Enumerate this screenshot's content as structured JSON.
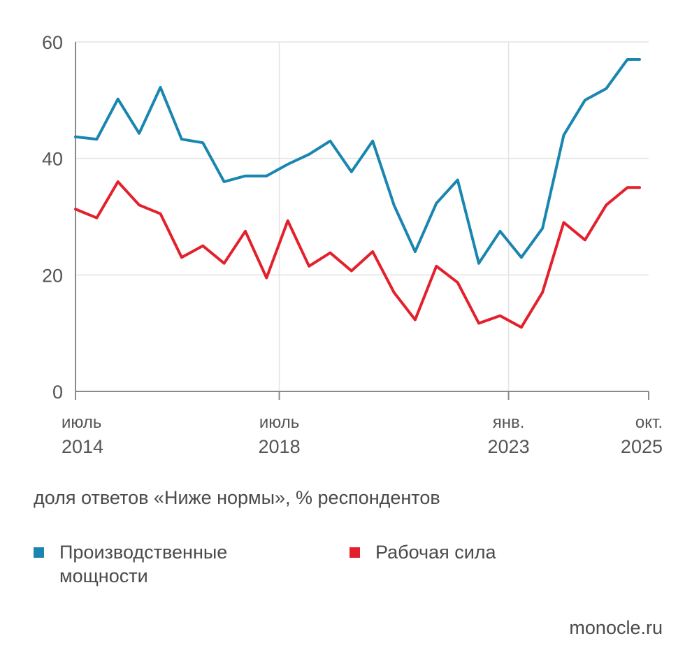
{
  "chart_data": {
    "type": "line",
    "x": [
      "2014-07",
      "2014-12",
      "2015-05",
      "2015-10",
      "2016-03",
      "2016-08",
      "2017-01",
      "2017-06",
      "2017-11",
      "2018-04",
      "2018-09",
      "2019-02",
      "2019-07",
      "2019-12",
      "2020-05",
      "2020-10",
      "2021-03",
      "2021-08",
      "2022-01",
      "2022-06",
      "2022-11",
      "2023-04",
      "2023-09",
      "2024-02",
      "2024-07",
      "2024-12",
      "2025-05",
      "2025-10"
    ],
    "series": [
      {
        "name": "Производственные мощности",
        "color": "#1a86b0",
        "values": [
          43.7,
          43.3,
          50.2,
          44.3,
          52.2,
          43.3,
          42.7,
          36.0,
          37.0,
          37.0,
          39.0,
          40.7,
          43.0,
          37.7,
          43.0,
          32.0,
          24.0,
          32.3,
          36.3,
          22.0,
          27.5,
          23.0,
          28.0,
          44.0,
          50.0,
          52.0,
          57.0,
          57.0
        ]
      },
      {
        "name": "Рабочая сила",
        "color": "#e3202b",
        "values": [
          31.3,
          29.8,
          36.0,
          32.0,
          30.5,
          23.0,
          25.0,
          22.0,
          27.5,
          19.5,
          29.3,
          21.5,
          23.8,
          20.7,
          24.0,
          17.0,
          12.3,
          21.5,
          18.7,
          11.7,
          13.0,
          11.0,
          17.0,
          29.0,
          26.0,
          32.0,
          35.0,
          35.0
        ]
      }
    ],
    "yticks": [
      0,
      20,
      40,
      60
    ],
    "ylim": [
      0,
      60
    ],
    "xticks": [
      {
        "x": "2014-07",
        "line1": "июль",
        "line2": "2014"
      },
      {
        "x": "2018-07",
        "line1": "июль",
        "line2": "2018"
      },
      {
        "x": "2023-01",
        "line1": "янв.",
        "line2": "2023"
      },
      {
        "x": "2025-10",
        "line1": "окт.",
        "line2": "2025"
      }
    ],
    "grid": true,
    "ylabel": "доля ответов «Ниже нормы», % респондентов",
    "legend_position": "bottom"
  },
  "legend": [
    {
      "label": "Производственные\nмощности",
      "color": "#1a86b0"
    },
    {
      "label": "Рабочая сила",
      "color": "#e3202b"
    }
  ],
  "source": "monocle.ru"
}
